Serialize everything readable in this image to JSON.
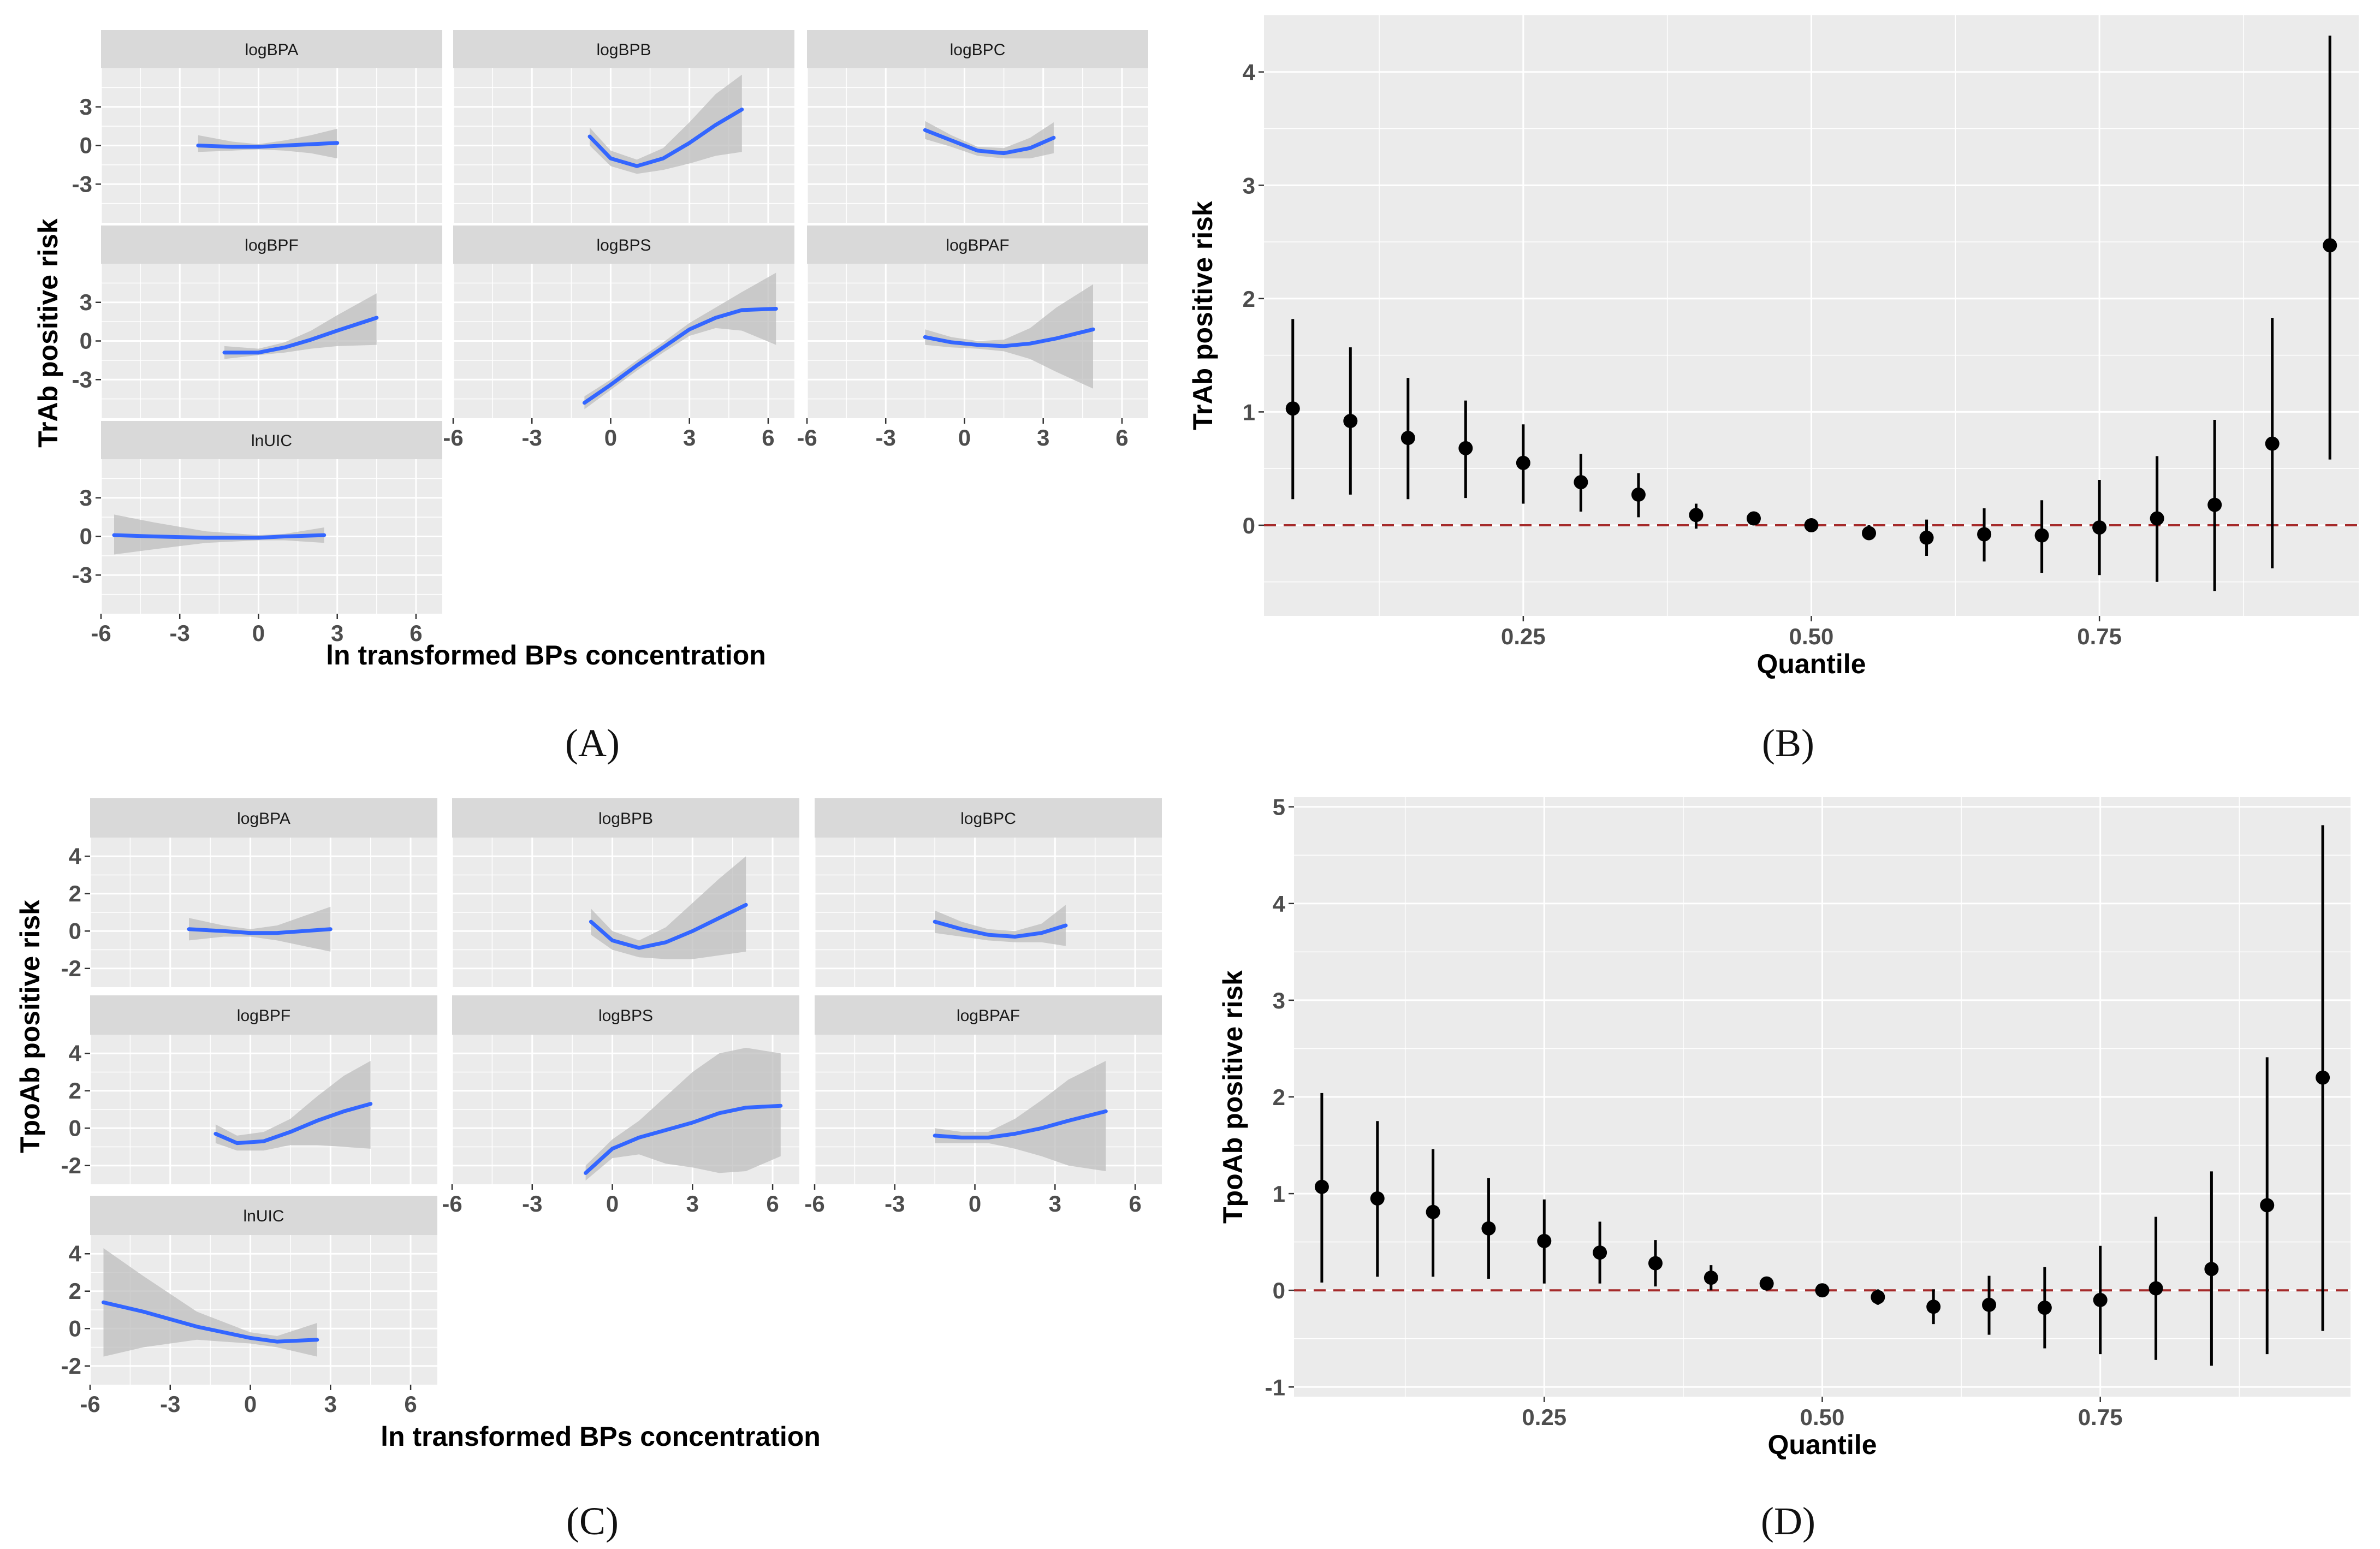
{
  "panel_labels": {
    "A": "(A)",
    "B": "(B)",
    "C": "(C)",
    "D": "(D)"
  },
  "colors": {
    "panel_bg": "#ebebeb",
    "strip_bg": "#d9d9d9",
    "grid": "#ffffff",
    "curve": "#3366ff",
    "ribbon": "#bdbdbd",
    "point": "#000000",
    "reference_line": "#a52a2a"
  },
  "chart_data": [
    {
      "id": "A",
      "type": "line",
      "xlabel": "ln transformed BPs concentration",
      "ylabel": "TrAb positive risk",
      "xlim": [
        -6,
        7
      ],
      "ylim": [
        -6,
        6
      ],
      "xticks": [
        -6,
        -3,
        0,
        3,
        6
      ],
      "xtick_labels": [
        "-6",
        "-3",
        "0",
        "3",
        "6"
      ],
      "yticks": [
        -3,
        0,
        3
      ],
      "ytick_labels": [
        "-3",
        "0",
        "3"
      ],
      "facets": [
        {
          "name": "logBPA",
          "x": [
            -2.3,
            -1,
            0,
            1,
            2,
            3
          ],
          "y": [
            0,
            -0.1,
            -0.1,
            0,
            0.1,
            0.2
          ],
          "lower": [
            -0.5,
            -0.4,
            -0.3,
            -0.4,
            -0.6,
            -1.0
          ],
          "upper": [
            0.8,
            0.3,
            0.1,
            0.4,
            0.8,
            1.3
          ]
        },
        {
          "name": "logBPB",
          "x": [
            -0.8,
            0,
            1,
            2,
            3,
            4,
            5
          ],
          "y": [
            0.7,
            -1.0,
            -1.6,
            -1.0,
            0.2,
            1.6,
            2.8
          ],
          "lower": [
            0,
            -1.6,
            -2.2,
            -1.9,
            -1.4,
            -0.8,
            -0.5
          ],
          "upper": [
            1.4,
            -0.4,
            -1.1,
            -0.2,
            1.8,
            4.0,
            5.5
          ]
        },
        {
          "name": "logBPC",
          "x": [
            -1.5,
            -0.5,
            0.5,
            1.5,
            2.5,
            3.4
          ],
          "y": [
            1.2,
            0.4,
            -0.4,
            -0.6,
            -0.2,
            0.6
          ],
          "lower": [
            0.5,
            -0.1,
            -0.8,
            -1.0,
            -1.0,
            -0.6
          ],
          "upper": [
            1.9,
            0.8,
            -0.1,
            -0.2,
            0.6,
            1.8
          ]
        },
        {
          "name": "logBPF",
          "x": [
            -1.3,
            0,
            1,
            2,
            3,
            4.5
          ],
          "y": [
            -0.9,
            -0.9,
            -0.5,
            0.1,
            0.8,
            1.8
          ],
          "lower": [
            -1.4,
            -1.1,
            -0.9,
            -0.6,
            -0.4,
            -0.3
          ],
          "upper": [
            -0.4,
            -0.6,
            -0.1,
            0.8,
            2.0,
            3.7
          ]
        },
        {
          "name": "logBPS",
          "x": [
            -1,
            0,
            1,
            2,
            3,
            4,
            5,
            6.3
          ],
          "y": [
            -4.8,
            -3.4,
            -1.9,
            -0.5,
            0.9,
            1.8,
            2.4,
            2.5
          ],
          "lower": [
            -5.3,
            -3.8,
            -2.3,
            -0.9,
            0.4,
            1.0,
            0.8,
            -0.3
          ],
          "upper": [
            -4.3,
            -3.0,
            -1.5,
            -0.1,
            1.4,
            2.6,
            3.8,
            5.3
          ]
        },
        {
          "name": "logBPAF",
          "x": [
            -1.5,
            -0.5,
            0.5,
            1.5,
            2.5,
            3.5,
            4.9
          ],
          "y": [
            0.3,
            -0.1,
            -0.3,
            -0.4,
            -0.2,
            0.2,
            0.9
          ],
          "lower": [
            -0.3,
            -0.5,
            -0.6,
            -0.8,
            -1.4,
            -2.4,
            -3.7
          ],
          "upper": [
            0.9,
            0.3,
            0.0,
            0.1,
            1.0,
            2.6,
            4.4
          ]
        },
        {
          "name": "lnUIC",
          "x": [
            -5.5,
            -4,
            -2,
            0,
            1,
            2.5
          ],
          "y": [
            0.1,
            0.0,
            -0.1,
            -0.1,
            0.0,
            0.1
          ],
          "lower": [
            -1.4,
            -1.0,
            -0.5,
            -0.3,
            -0.3,
            -0.5
          ],
          "upper": [
            1.7,
            1.1,
            0.4,
            0.1,
            0.2,
            0.7
          ]
        }
      ]
    },
    {
      "id": "B",
      "type": "scatter",
      "xlabel": "Quantile",
      "ylabel": "TrAb positive risk",
      "xlim": [
        0.025,
        0.975
      ],
      "ylim": [
        -0.8,
        4.5
      ],
      "xticks": [
        0.25,
        0.5,
        0.75
      ],
      "xtick_labels": [
        "0.25",
        "0.50",
        "0.75"
      ],
      "yticks": [
        0,
        1,
        2,
        3,
        4
      ],
      "ytick_labels": [
        "0",
        "1",
        "2",
        "3",
        "4"
      ],
      "reference_line": 0,
      "x": [
        0.05,
        0.1,
        0.15,
        0.2,
        0.25,
        0.3,
        0.35,
        0.4,
        0.45,
        0.5,
        0.55,
        0.6,
        0.65,
        0.7,
        0.75,
        0.8,
        0.85,
        0.9,
        0.95
      ],
      "y": [
        1.03,
        0.92,
        0.77,
        0.68,
        0.55,
        0.38,
        0.27,
        0.09,
        0.06,
        0.0,
        -0.07,
        -0.11,
        -0.08,
        -0.09,
        -0.02,
        0.06,
        0.18,
        0.72,
        2.47
      ],
      "lower": [
        0.23,
        0.27,
        0.23,
        0.24,
        0.19,
        0.12,
        0.07,
        -0.03,
        0.02,
        0.0,
        -0.13,
        -0.27,
        -0.32,
        -0.42,
        -0.44,
        -0.5,
        -0.58,
        -0.38,
        0.58
      ],
      "upper": [
        1.82,
        1.57,
        1.3,
        1.1,
        0.89,
        0.63,
        0.46,
        0.19,
        0.1,
        0.0,
        0.0,
        0.05,
        0.15,
        0.22,
        0.4,
        0.61,
        0.93,
        1.83,
        4.32
      ]
    },
    {
      "id": "C",
      "type": "line",
      "xlabel": "ln transformed BPs concentration",
      "ylabel": "TpoAb positive risk",
      "xlim": [
        -6,
        7
      ],
      "ylim": [
        -3,
        5
      ],
      "xticks": [
        -6,
        -3,
        0,
        3,
        6
      ],
      "xtick_labels": [
        "-6",
        "-3",
        "0",
        "3",
        "6"
      ],
      "yticks": [
        -2,
        0,
        2,
        4
      ],
      "ytick_labels": [
        "-2",
        "0",
        "2",
        "4"
      ],
      "facets": [
        {
          "name": "logBPA",
          "x": [
            -2.3,
            -1,
            0,
            1,
            2,
            3
          ],
          "y": [
            0.1,
            0.0,
            -0.1,
            -0.1,
            0.0,
            0.1
          ],
          "lower": [
            -0.5,
            -0.3,
            -0.3,
            -0.5,
            -0.8,
            -1.1
          ],
          "upper": [
            0.7,
            0.3,
            0.1,
            0.3,
            0.8,
            1.3
          ]
        },
        {
          "name": "logBPB",
          "x": [
            -0.8,
            0,
            1,
            2,
            3,
            4,
            5
          ],
          "y": [
            0.5,
            -0.5,
            -0.9,
            -0.6,
            0.0,
            0.7,
            1.4
          ],
          "lower": [
            -0.2,
            -1.0,
            -1.4,
            -1.5,
            -1.5,
            -1.3,
            -1.1
          ],
          "upper": [
            1.2,
            0.0,
            -0.5,
            0.2,
            1.5,
            2.8,
            4.0
          ]
        },
        {
          "name": "logBPC",
          "x": [
            -1.5,
            -0.5,
            0.5,
            1.5,
            2.5,
            3.4
          ],
          "y": [
            0.5,
            0.1,
            -0.2,
            -0.3,
            -0.1,
            0.3
          ],
          "lower": [
            -0.1,
            -0.3,
            -0.5,
            -0.6,
            -0.6,
            -0.8
          ],
          "upper": [
            1.1,
            0.5,
            0.1,
            0.0,
            0.4,
            1.4
          ]
        },
        {
          "name": "logBPF",
          "x": [
            -1.3,
            -0.5,
            0.5,
            1.5,
            2.5,
            3.5,
            4.5
          ],
          "y": [
            -0.3,
            -0.8,
            -0.7,
            -0.2,
            0.4,
            0.9,
            1.3
          ],
          "lower": [
            -0.8,
            -1.2,
            -1.2,
            -0.9,
            -0.9,
            -1.0,
            -1.1
          ],
          "upper": [
            0.2,
            -0.4,
            -0.2,
            0.5,
            1.7,
            2.8,
            3.6
          ]
        },
        {
          "name": "logBPS",
          "x": [
            -1,
            0,
            1,
            2,
            3,
            4,
            5,
            6.3
          ],
          "y": [
            -2.4,
            -1.1,
            -0.5,
            -0.1,
            0.3,
            0.8,
            1.1,
            1.2
          ],
          "lower": [
            -2.8,
            -1.6,
            -1.4,
            -1.9,
            -2.1,
            -2.4,
            -2.3,
            -1.5
          ],
          "upper": [
            -2.0,
            -0.6,
            0.4,
            1.7,
            3.0,
            4.0,
            4.3,
            4.0
          ]
        },
        {
          "name": "logBPAF",
          "x": [
            -1.5,
            -0.5,
            0.5,
            1.5,
            2.5,
            3.5,
            4.9
          ],
          "y": [
            -0.4,
            -0.5,
            -0.5,
            -0.3,
            0.0,
            0.4,
            0.9
          ],
          "lower": [
            -0.8,
            -0.8,
            -0.8,
            -1.1,
            -1.5,
            -2.0,
            -2.3
          ],
          "upper": [
            0.0,
            -0.2,
            -0.2,
            0.5,
            1.5,
            2.6,
            3.6
          ]
        },
        {
          "name": "lnUIC",
          "x": [
            -5.5,
            -4,
            -2,
            0,
            1,
            2.5
          ],
          "y": [
            1.4,
            0.9,
            0.1,
            -0.5,
            -0.7,
            -0.6
          ],
          "lower": [
            -1.5,
            -1.0,
            -0.6,
            -0.8,
            -1.0,
            -1.5
          ],
          "upper": [
            4.3,
            2.8,
            0.9,
            -0.2,
            -0.4,
            0.3
          ]
        }
      ]
    },
    {
      "id": "D",
      "type": "scatter",
      "xlabel": "Quantile",
      "ylabel": "TpoAb positive risk",
      "xlim": [
        0.025,
        0.975
      ],
      "ylim": [
        -1.1,
        5.1
      ],
      "xticks": [
        0.25,
        0.5,
        0.75
      ],
      "xtick_labels": [
        "0.25",
        "0.50",
        "0.75"
      ],
      "yticks": [
        -1,
        0,
        1,
        2,
        3,
        4,
        5
      ],
      "ytick_labels": [
        "-1",
        "0",
        "1",
        "2",
        "3",
        "4",
        "5"
      ],
      "reference_line": 0,
      "x": [
        0.05,
        0.1,
        0.15,
        0.2,
        0.25,
        0.3,
        0.35,
        0.4,
        0.45,
        0.5,
        0.55,
        0.6,
        0.65,
        0.7,
        0.75,
        0.8,
        0.85,
        0.9,
        0.95
      ],
      "y": [
        1.07,
        0.95,
        0.81,
        0.64,
        0.51,
        0.39,
        0.28,
        0.13,
        0.07,
        0.0,
        -0.07,
        -0.17,
        -0.15,
        -0.18,
        -0.1,
        0.02,
        0.22,
        0.88,
        2.2
      ],
      "lower": [
        0.08,
        0.14,
        0.14,
        0.12,
        0.07,
        0.07,
        0.04,
        0.0,
        0.02,
        0.0,
        -0.15,
        -0.35,
        -0.46,
        -0.6,
        -0.66,
        -0.72,
        -0.78,
        -0.66,
        -0.42
      ],
      "upper": [
        2.04,
        1.75,
        1.46,
        1.16,
        0.94,
        0.71,
        0.52,
        0.26,
        0.12,
        0.0,
        0.01,
        0.01,
        0.15,
        0.24,
        0.46,
        0.76,
        1.23,
        2.41,
        4.81
      ]
    }
  ]
}
